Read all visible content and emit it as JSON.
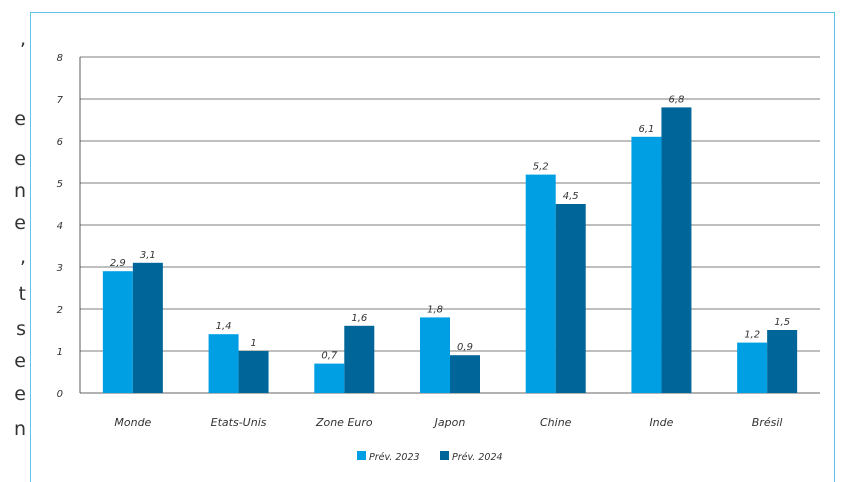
{
  "page_left_text": [
    ",",
    "e",
    "e",
    "n",
    "e",
    ",",
    "t",
    "s",
    "e",
    "e",
    "n"
  ],
  "chart_data": {
    "type": "bar",
    "categories": [
      "Monde",
      "Etats-Unis",
      "Zone Euro",
      "Japon",
      "Chine",
      "Inde",
      "Brésil"
    ],
    "series": [
      {
        "name": "Prév. 2023",
        "values": [
          2.9,
          1.4,
          0.7,
          1.8,
          5.2,
          6.1,
          1.2
        ],
        "labels": [
          "2,9",
          "1,4",
          "0,7",
          "1,8",
          "5,2",
          "6,1",
          "1,2"
        ],
        "color": "#009fe3"
      },
      {
        "name": "Prév. 2024",
        "values": [
          3.1,
          1.0,
          1.6,
          0.9,
          4.5,
          6.8,
          1.5
        ],
        "labels": [
          "3,1",
          "1",
          "1,6",
          "0,9",
          "4,5",
          "6,8",
          "1,5"
        ],
        "color": "#006699"
      }
    ],
    "ylim": [
      0,
      8
    ],
    "yticks": [
      "0",
      "1",
      "2",
      "3",
      "4",
      "5",
      "6",
      "7",
      "8"
    ],
    "grid": true,
    "legend_position": "bottom-center",
    "title": "",
    "xlabel": "",
    "ylabel": ""
  }
}
